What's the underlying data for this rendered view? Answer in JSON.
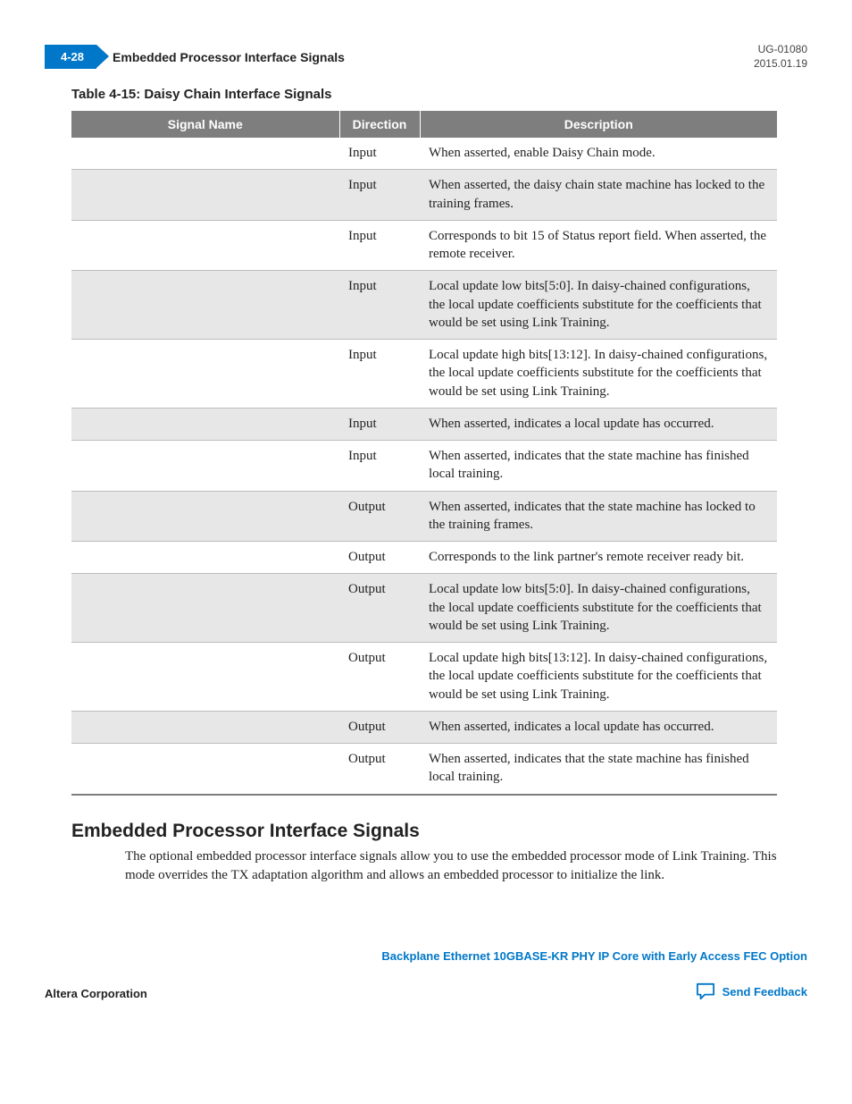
{
  "header": {
    "page_number": "4-28",
    "title": "Embedded Processor Interface Signals",
    "doc_id": "UG-01080",
    "date": "2015.01.19"
  },
  "table": {
    "caption": "Table 4-15: Daisy Chain Interface Signals",
    "columns": [
      "Signal Name",
      "Direction",
      "Description"
    ],
    "rows": [
      {
        "signal": "",
        "direction": "Input",
        "description": "When asserted, enable Daisy Chain mode."
      },
      {
        "signal": "",
        "direction": "Input",
        "description": "When asserted, the daisy chain state machine has locked to the training frames."
      },
      {
        "signal": "",
        "direction": "Input",
        "description": "Corresponds to bit 15 of Status report field. When asserted, the remote receiver."
      },
      {
        "signal": "",
        "direction": "Input",
        "description": "Local update low bits[5:0]. In daisy-chained configurations, the local update coefficients substitute for the coefficients that would be set using Link Training."
      },
      {
        "signal": "",
        "direction": "Input",
        "description": "Local update high bits[13:12]. In daisy-chained configurations, the local update coefficients substitute for the coefficients that would be set using Link Training."
      },
      {
        "signal": "",
        "direction": "Input",
        "description": "When asserted, indicates a local update has occurred."
      },
      {
        "signal": "",
        "direction": "Input",
        "description": "When asserted, indicates that the state machine has finished local training."
      },
      {
        "signal": "",
        "direction": "Output",
        "description": "When asserted, indicates that the state machine has locked to the training frames."
      },
      {
        "signal": "",
        "direction": "Output",
        "description": "Corresponds to the link partner's remote receiver ready bit."
      },
      {
        "signal": "",
        "direction": "Output",
        "description": "Local update low bits[5:0]. In daisy-chained configurations, the local update coefficients substitute for the coefficients that would be set using Link Training."
      },
      {
        "signal": "",
        "direction": "Output",
        "description": "Local update high bits[13:12]. In daisy-chained configurations, the local update coefficients substitute for the coefficients that would be set using Link Training."
      },
      {
        "signal": "",
        "direction": "Output",
        "description": "When asserted, indicates a local update has occurred."
      },
      {
        "signal": "",
        "direction": "Output",
        "description": "When asserted, indicates that the state machine has finished local training."
      }
    ]
  },
  "section": {
    "heading": "Embedded Processor Interface Signals",
    "paragraph": "The optional embedded processor interface signals allow you to use the embedded processor mode of Link Training. This mode overrides the TX adaptation algorithm and allows an embedded processor to initialize the link."
  },
  "footer": {
    "left": "Altera Corporation",
    "right_link": "Backplane Ethernet 10GBASE-KR PHY IP Core with Early Access FEC Option",
    "feedback": "Send Feedback"
  },
  "colors": {
    "accent": "#0077c8",
    "table_header": "#7e7e7e",
    "row_alt": "#e7e7e7"
  }
}
